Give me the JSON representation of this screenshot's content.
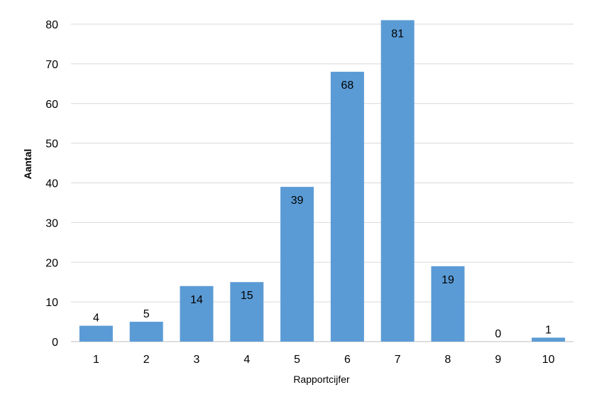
{
  "chart_data": {
    "type": "bar",
    "categories": [
      "1",
      "2",
      "3",
      "4",
      "5",
      "6",
      "7",
      "8",
      "9",
      "10"
    ],
    "values": [
      4,
      5,
      14,
      15,
      39,
      68,
      81,
      19,
      0,
      1
    ],
    "data_labels": [
      "4",
      "5",
      "14",
      "15",
      "39",
      "68",
      "81",
      "19",
      "0",
      "1"
    ],
    "xlabel": "Rapportcijfer",
    "ylabel": "Aantal",
    "ylim": [
      0,
      80
    ],
    "yticks": [
      "0",
      "10",
      "20",
      "30",
      "40",
      "50",
      "60",
      "70",
      "80"
    ],
    "grid": true,
    "legend": "none",
    "colors": {
      "bar": "#5B9BD5",
      "grid": "#D9D9D9",
      "axis": "#BFBFBF"
    }
  }
}
